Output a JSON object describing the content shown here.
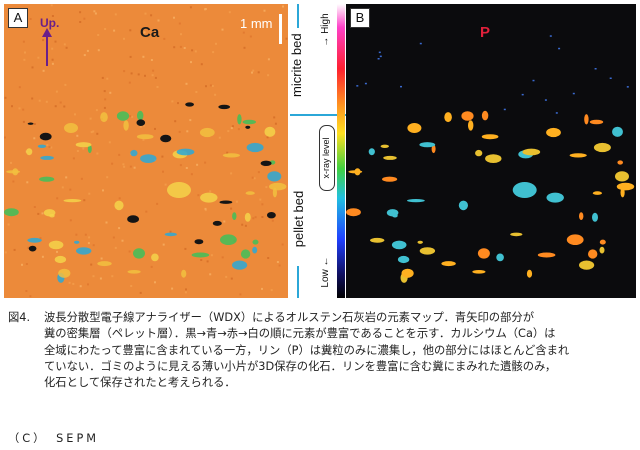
{
  "figure": {
    "panel_a": {
      "tag": "A",
      "element": "Ca",
      "direction_label": "Up.",
      "scale_label": "1 mm",
      "background_color": "#ec8a3a"
    },
    "panel_b": {
      "tag": "B",
      "element": "P",
      "element_color": "#e0203a",
      "background_color": "#0b0b0d"
    },
    "bed_axis": {
      "upper_bed": "micrite bed",
      "lower_bed": "pellet bed",
      "level_high": "→ High",
      "level_low": "Low ←",
      "level_title": "x-ray level",
      "divider_color": "#2ba7d8"
    }
  },
  "caption": {
    "heading": "図4.",
    "lines": [
      "波長分散型電子線アナライザー（WDX）によるオルステン石灰岩の元素マップ．青矢印の部分が",
      "糞の密集層（ペレット層）．黒→青→赤→白の順に元素が豊富であることを示す．カルシウム（Ca）は",
      "全域にわたって豊富に含まれている一方，リン（P）は糞粒のみに濃集し，他の部分にはほとんど含まれ",
      "ていない．ゴミのように見える薄い小片が3D保存の化石．リンを豊富に含む糞にまみれた遺骸のみ，",
      "化石として保存されたと考えられる．"
    ]
  },
  "credit": "（C）　SEPM"
}
